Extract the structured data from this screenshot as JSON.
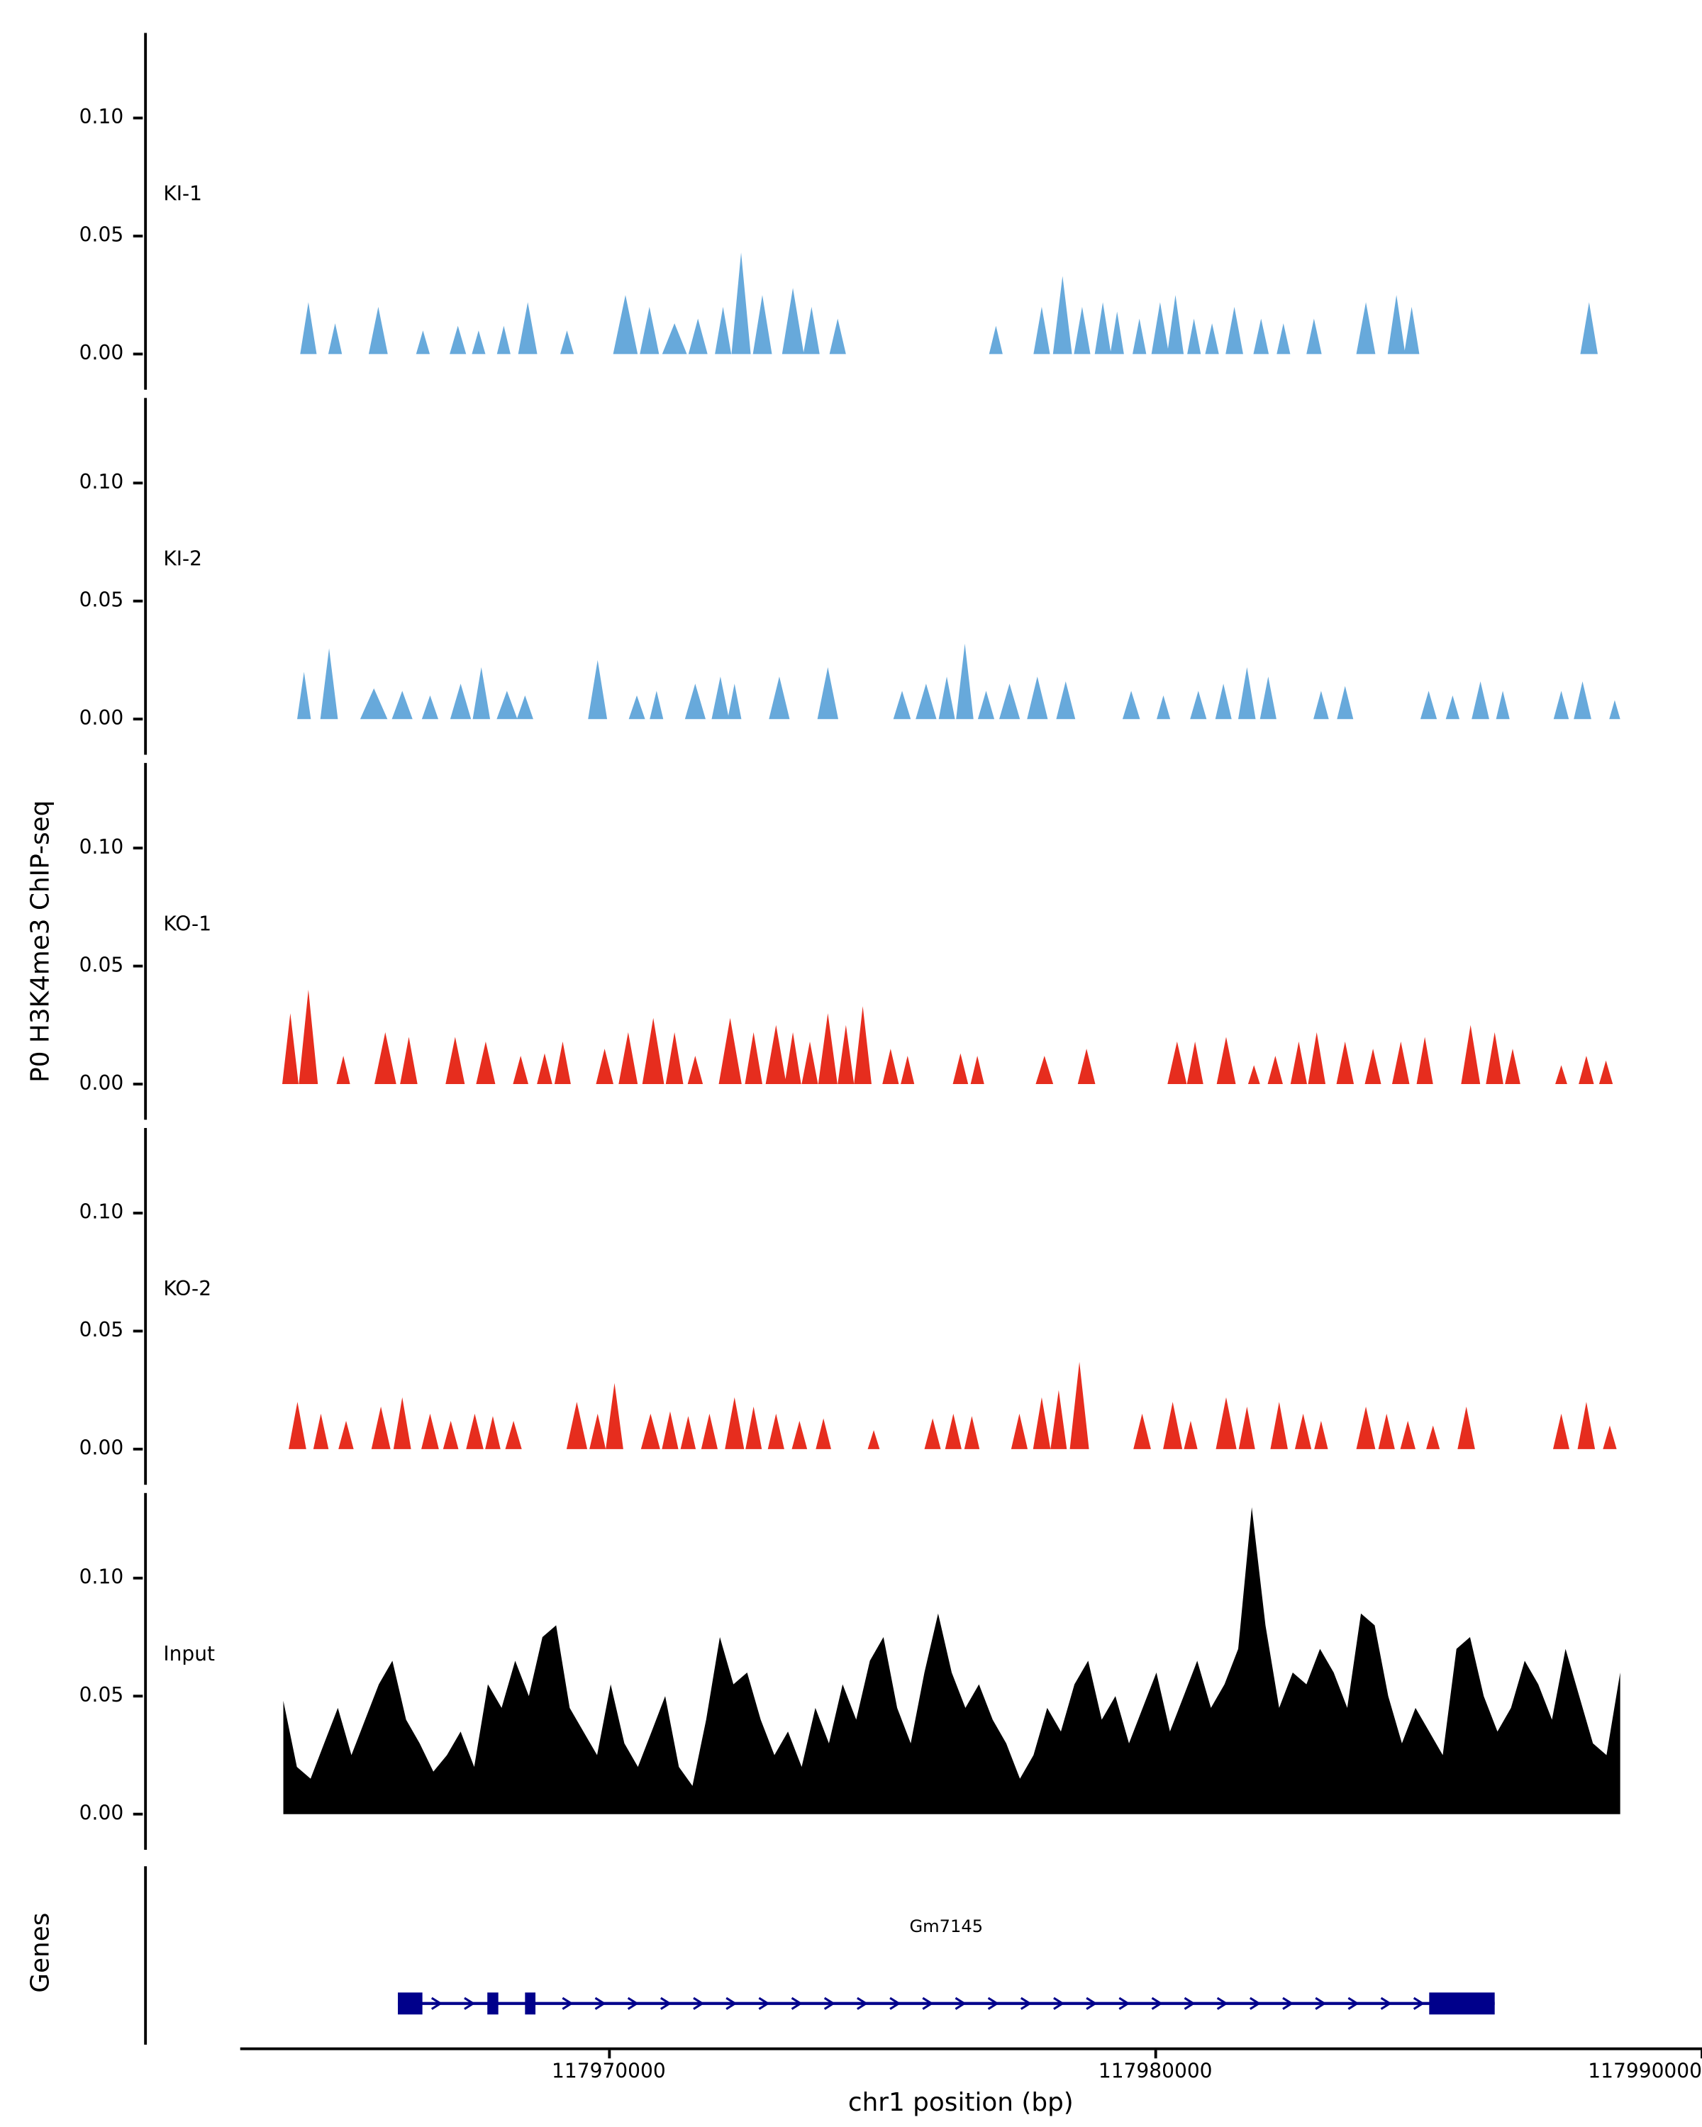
{
  "figure": {
    "y_axis_label": "P0 H3K4me3 ChIP-seq",
    "x_axis_label": "chr1 position (bp)",
    "genes_panel_label": "Genes"
  },
  "chart_data": {
    "type": "area",
    "title": "",
    "xlabel": "chr1 position (bp)",
    "ylabel": "P0 H3K4me3 ChIP-seq",
    "x_domain": [
      117961500,
      117990000
    ],
    "ylim": [
      0,
      0.136
    ],
    "grid": false,
    "y_tick_labels": [
      "0.10",
      "0.05",
      "0.00"
    ],
    "y_tick_values": [
      0.1,
      0.05,
      0.0
    ],
    "x_ticks": [
      {
        "value": 117970000,
        "label": "117970000"
      },
      {
        "value": 117980000,
        "label": "117980000"
      },
      {
        "value": 117990000,
        "label": "117990000"
      }
    ],
    "tracks": [
      {
        "name": "KI-1",
        "color": "#67a9db",
        "kind": "peaks",
        "peaks": [
          [
            117964460,
            0.022,
            300
          ],
          [
            117964950,
            0.013,
            250
          ],
          [
            117965740,
            0.02,
            350
          ],
          [
            117966560,
            0.01,
            250
          ],
          [
            117967200,
            0.012,
            300
          ],
          [
            117967580,
            0.01,
            250
          ],
          [
            117968040,
            0.012,
            250
          ],
          [
            117968480,
            0.022,
            350
          ],
          [
            117969200,
            0.01,
            250
          ],
          [
            117970270,
            0.025,
            450
          ],
          [
            117970710,
            0.02,
            350
          ],
          [
            117971170,
            0.013,
            450
          ],
          [
            117971600,
            0.015,
            350
          ],
          [
            117972060,
            0.02,
            300
          ],
          [
            117972390,
            0.043,
            350
          ],
          [
            117972780,
            0.025,
            350
          ],
          [
            117973340,
            0.028,
            400
          ],
          [
            117973680,
            0.02,
            300
          ],
          [
            117974160,
            0.015,
            300
          ],
          [
            117977060,
            0.012,
            250
          ],
          [
            117977900,
            0.02,
            300
          ],
          [
            117978280,
            0.033,
            350
          ],
          [
            117978640,
            0.02,
            300
          ],
          [
            117979020,
            0.022,
            300
          ],
          [
            117979280,
            0.018,
            250
          ],
          [
            117979690,
            0.015,
            250
          ],
          [
            117980070,
            0.022,
            320
          ],
          [
            117980350,
            0.025,
            300
          ],
          [
            117980690,
            0.015,
            250
          ],
          [
            117981020,
            0.013,
            250
          ],
          [
            117981430,
            0.02,
            320
          ],
          [
            117981920,
            0.015,
            280
          ],
          [
            117982330,
            0.013,
            250
          ],
          [
            117982890,
            0.015,
            280
          ],
          [
            117983840,
            0.022,
            350
          ],
          [
            117984400,
            0.025,
            320
          ],
          [
            117984680,
            0.02,
            280
          ],
          [
            117987930,
            0.022,
            320
          ]
        ]
      },
      {
        "name": "KI-2",
        "color": "#67a9db",
        "kind": "peaks",
        "peaks": [
          [
            117964380,
            0.02,
            250
          ],
          [
            117964840,
            0.03,
            320
          ],
          [
            117965660,
            0.013,
            500
          ],
          [
            117966180,
            0.012,
            380
          ],
          [
            117966690,
            0.01,
            300
          ],
          [
            117967250,
            0.015,
            380
          ],
          [
            117967630,
            0.022,
            320
          ],
          [
            117968100,
            0.012,
            380
          ],
          [
            117968430,
            0.01,
            300
          ],
          [
            117969760,
            0.025,
            350
          ],
          [
            117970480,
            0.01,
            300
          ],
          [
            117970840,
            0.012,
            250
          ],
          [
            117971550,
            0.015,
            380
          ],
          [
            117972010,
            0.018,
            320
          ],
          [
            117972270,
            0.015,
            250
          ],
          [
            117973090,
            0.018,
            380
          ],
          [
            117973980,
            0.022,
            380
          ],
          [
            117975340,
            0.012,
            320
          ],
          [
            117975780,
            0.015,
            380
          ],
          [
            117976160,
            0.018,
            300
          ],
          [
            117976490,
            0.032,
            320
          ],
          [
            117976880,
            0.012,
            300
          ],
          [
            117977310,
            0.015,
            380
          ],
          [
            117977820,
            0.018,
            380
          ],
          [
            117978340,
            0.016,
            350
          ],
          [
            117979540,
            0.012,
            320
          ],
          [
            117980130,
            0.01,
            250
          ],
          [
            117980770,
            0.012,
            300
          ],
          [
            117981230,
            0.015,
            300
          ],
          [
            117981660,
            0.022,
            320
          ],
          [
            117982050,
            0.018,
            300
          ],
          [
            117983020,
            0.012,
            280
          ],
          [
            117983460,
            0.014,
            300
          ],
          [
            117984990,
            0.012,
            300
          ],
          [
            117985430,
            0.01,
            250
          ],
          [
            117985940,
            0.016,
            320
          ],
          [
            117986350,
            0.012,
            250
          ],
          [
            117987420,
            0.012,
            280
          ],
          [
            117987810,
            0.016,
            320
          ],
          [
            117988400,
            0.008,
            200
          ]
        ]
      },
      {
        "name": "KO-1",
        "color": "#e62d1e",
        "kind": "peaks",
        "peaks": [
          [
            117964130,
            0.03,
            300
          ],
          [
            117964460,
            0.04,
            350
          ],
          [
            117965100,
            0.012,
            250
          ],
          [
            117965870,
            0.022,
            400
          ],
          [
            117966300,
            0.02,
            320
          ],
          [
            117967150,
            0.02,
            350
          ],
          [
            117967710,
            0.018,
            350
          ],
          [
            117968350,
            0.012,
            280
          ],
          [
            117968790,
            0.013,
            280
          ],
          [
            117969120,
            0.018,
            300
          ],
          [
            117969890,
            0.015,
            320
          ],
          [
            117970320,
            0.022,
            350
          ],
          [
            117970780,
            0.028,
            400
          ],
          [
            117971170,
            0.022,
            320
          ],
          [
            117971550,
            0.012,
            280
          ],
          [
            117972190,
            0.028,
            420
          ],
          [
            117972620,
            0.022,
            320
          ],
          [
            117973030,
            0.025,
            380
          ],
          [
            117973340,
            0.022,
            300
          ],
          [
            117973650,
            0.018,
            300
          ],
          [
            117973980,
            0.03,
            350
          ],
          [
            117974310,
            0.025,
            300
          ],
          [
            117974620,
            0.033,
            320
          ],
          [
            117975130,
            0.015,
            300
          ],
          [
            117975440,
            0.012,
            250
          ],
          [
            117976410,
            0.013,
            280
          ],
          [
            117976720,
            0.012,
            250
          ],
          [
            117977950,
            0.012,
            320
          ],
          [
            117978720,
            0.015,
            320
          ],
          [
            117980380,
            0.018,
            350
          ],
          [
            117980710,
            0.018,
            300
          ],
          [
            117981280,
            0.02,
            350
          ],
          [
            117981790,
            0.008,
            220
          ],
          [
            117982180,
            0.012,
            280
          ],
          [
            117982610,
            0.018,
            300
          ],
          [
            117982940,
            0.022,
            320
          ],
          [
            117983460,
            0.018,
            320
          ],
          [
            117983970,
            0.015,
            300
          ],
          [
            117984480,
            0.018,
            320
          ],
          [
            117984920,
            0.02,
            300
          ],
          [
            117985760,
            0.025,
            350
          ],
          [
            117986200,
            0.022,
            320
          ],
          [
            117986530,
            0.015,
            280
          ],
          [
            117987420,
            0.008,
            220
          ],
          [
            117987880,
            0.012,
            280
          ],
          [
            117988240,
            0.01,
            250
          ]
        ]
      },
      {
        "name": "KO-2",
        "color": "#e62d1e",
        "kind": "peaks",
        "peaks": [
          [
            117964260,
            0.02,
            320
          ],
          [
            117964690,
            0.015,
            280
          ],
          [
            117965150,
            0.012,
            280
          ],
          [
            117965790,
            0.018,
            350
          ],
          [
            117966180,
            0.022,
            320
          ],
          [
            117966690,
            0.015,
            320
          ],
          [
            117967070,
            0.012,
            280
          ],
          [
            117967510,
            0.015,
            320
          ],
          [
            117967840,
            0.014,
            280
          ],
          [
            117968220,
            0.012,
            300
          ],
          [
            117969380,
            0.02,
            380
          ],
          [
            117969760,
            0.015,
            300
          ],
          [
            117970070,
            0.028,
            320
          ],
          [
            117970730,
            0.015,
            350
          ],
          [
            117971090,
            0.016,
            300
          ],
          [
            117971420,
            0.014,
            280
          ],
          [
            117971810,
            0.015,
            300
          ],
          [
            117972270,
            0.022,
            350
          ],
          [
            117972620,
            0.018,
            300
          ],
          [
            117973030,
            0.015,
            300
          ],
          [
            117973460,
            0.012,
            280
          ],
          [
            117973900,
            0.013,
            280
          ],
          [
            117974820,
            0.008,
            220
          ],
          [
            117975900,
            0.013,
            300
          ],
          [
            117976280,
            0.015,
            300
          ],
          [
            117976620,
            0.014,
            280
          ],
          [
            117977490,
            0.015,
            300
          ],
          [
            117977900,
            0.022,
            320
          ],
          [
            117978210,
            0.025,
            300
          ],
          [
            117978590,
            0.037,
            350
          ],
          [
            117979740,
            0.015,
            320
          ],
          [
            117980300,
            0.02,
            350
          ],
          [
            117980630,
            0.012,
            250
          ],
          [
            117981280,
            0.022,
            380
          ],
          [
            117981660,
            0.018,
            300
          ],
          [
            117982250,
            0.02,
            320
          ],
          [
            117982690,
            0.015,
            300
          ],
          [
            117983020,
            0.012,
            250
          ],
          [
            117983840,
            0.018,
            350
          ],
          [
            117984220,
            0.015,
            300
          ],
          [
            117984610,
            0.012,
            280
          ],
          [
            117985070,
            0.01,
            250
          ],
          [
            117985680,
            0.018,
            320
          ],
          [
            117987420,
            0.015,
            300
          ],
          [
            117987880,
            0.02,
            320
          ],
          [
            117988310,
            0.01,
            250
          ]
        ]
      },
      {
        "name": "Input",
        "color": "#000000",
        "kind": "profile",
        "x_start": 117964000,
        "x_step": 250,
        "values": [
          0.048,
          0.02,
          0.015,
          0.03,
          0.045,
          0.025,
          0.04,
          0.055,
          0.065,
          0.04,
          0.03,
          0.018,
          0.025,
          0.035,
          0.02,
          0.055,
          0.045,
          0.065,
          0.05,
          0.075,
          0.08,
          0.045,
          0.035,
          0.025,
          0.055,
          0.03,
          0.02,
          0.035,
          0.05,
          0.02,
          0.012,
          0.04,
          0.075,
          0.055,
          0.06,
          0.04,
          0.025,
          0.035,
          0.02,
          0.045,
          0.03,
          0.055,
          0.04,
          0.065,
          0.075,
          0.045,
          0.03,
          0.06,
          0.085,
          0.06,
          0.045,
          0.055,
          0.04,
          0.03,
          0.015,
          0.025,
          0.045,
          0.035,
          0.055,
          0.065,
          0.04,
          0.05,
          0.03,
          0.045,
          0.06,
          0.035,
          0.05,
          0.065,
          0.045,
          0.055,
          0.07,
          0.13,
          0.08,
          0.045,
          0.06,
          0.055,
          0.07,
          0.06,
          0.045,
          0.085,
          0.08,
          0.05,
          0.03,
          0.045,
          0.035,
          0.025,
          0.07,
          0.075,
          0.05,
          0.035,
          0.045,
          0.065,
          0.055,
          0.04,
          0.07,
          0.05,
          0.03,
          0.025,
          0.06
        ]
      }
    ],
    "gene_track": {
      "label": "Genes",
      "color": "#00008b",
      "genes": [
        {
          "name": "Gm7145",
          "start": 117966100,
          "end": 117986200,
          "strand": "+",
          "exons": [
            [
              117966100,
              117966550
            ],
            [
              117967740,
              117967940
            ],
            [
              117968430,
              117968620
            ],
            [
              117985000,
              117986200
            ]
          ]
        }
      ]
    }
  }
}
